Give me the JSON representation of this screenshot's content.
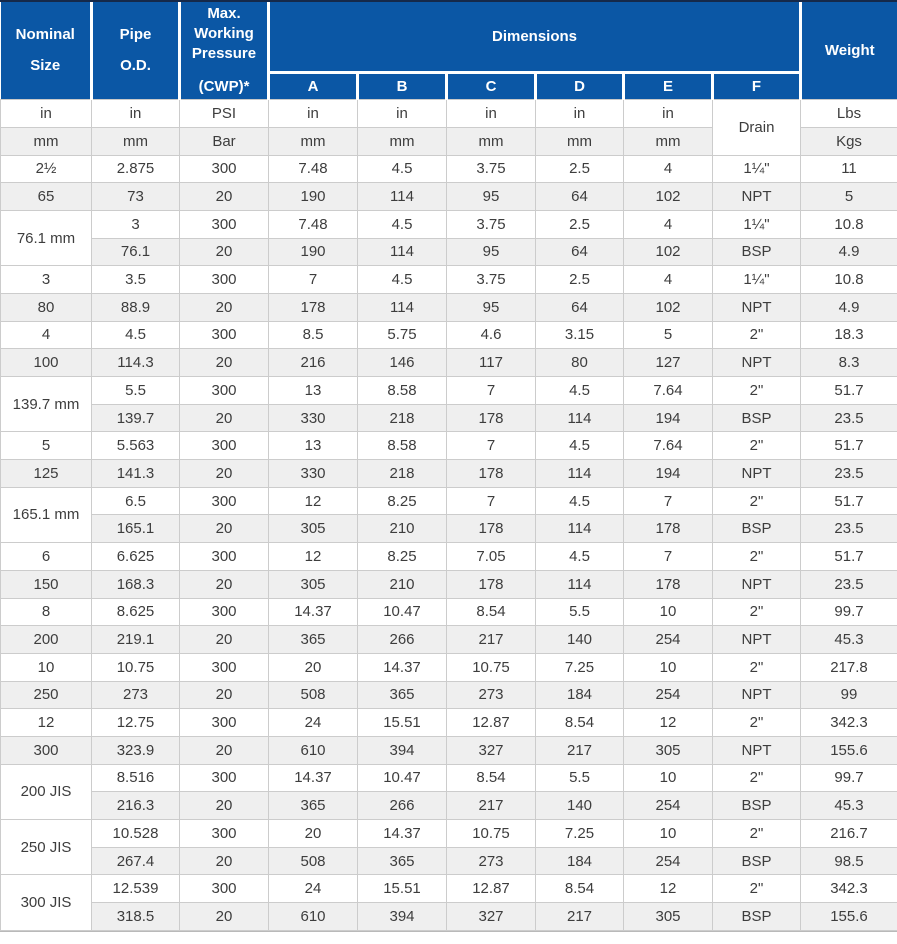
{
  "colors": {
    "header_blue": "#0b57a5",
    "stripe_gray": "#efefef",
    "border_gray": "#cccccc",
    "header_text": "#ffffff",
    "cell_text": "#3d3d3d"
  },
  "header": {
    "nominal_line1": "Nominal",
    "nominal_line2": "Size",
    "pipe_line1": "Pipe",
    "pipe_line2": "O.D.",
    "pressure_line1": "Max.",
    "pressure_line2": "Working",
    "pressure_line3": "Pressure",
    "pressure_line4": "(CWP)*",
    "dimensions": "Dimensions",
    "dim_letters": [
      "A",
      "B",
      "C",
      "D",
      "E",
      "F"
    ],
    "weight": "Weight"
  },
  "units": {
    "in_row": [
      "in",
      "in",
      "PSI",
      "in",
      "in",
      "in",
      "in",
      "in"
    ],
    "mm_row": [
      "mm",
      "mm",
      "Bar",
      "mm",
      "mm",
      "mm",
      "mm",
      "mm"
    ],
    "drain": "Drain",
    "lbs": "Lbs",
    "kgs": "Kgs"
  },
  "chart_data": {
    "type": "table",
    "columns": [
      "Nominal Size",
      "Pipe O.D.",
      "Max. Working Pressure (CWP)*",
      "A",
      "B",
      "C",
      "D",
      "E",
      "F",
      "Weight"
    ],
    "unit_rows": {
      "imperial": [
        "in",
        "in",
        "PSI",
        "in",
        "in",
        "in",
        "in",
        "in",
        "Drain",
        "Lbs"
      ],
      "metric": [
        "mm",
        "mm",
        "Bar",
        "mm",
        "mm",
        "mm",
        "mm",
        "mm",
        "Drain",
        "Kgs"
      ]
    },
    "row_pairs": [
      {
        "merged": false,
        "nominal_top": "2½",
        "nominal_bottom": "65",
        "top": [
          "2.875",
          "300",
          "7.48",
          "4.5",
          "3.75",
          "2.5",
          "4",
          "1¼\"",
          "11"
        ],
        "bottom": [
          "73",
          "20",
          "190",
          "114",
          "95",
          "64",
          "102",
          "NPT",
          "5"
        ]
      },
      {
        "merged": true,
        "nominal": "76.1 mm",
        "top": [
          "3",
          "300",
          "7.48",
          "4.5",
          "3.75",
          "2.5",
          "4",
          "1¼\"",
          "10.8"
        ],
        "bottom": [
          "76.1",
          "20",
          "190",
          "114",
          "95",
          "64",
          "102",
          "BSP",
          "4.9"
        ]
      },
      {
        "merged": false,
        "nominal_top": "3",
        "nominal_bottom": "80",
        "top": [
          "3.5",
          "300",
          "7",
          "4.5",
          "3.75",
          "2.5",
          "4",
          "1¼\"",
          "10.8"
        ],
        "bottom": [
          "88.9",
          "20",
          "178",
          "114",
          "95",
          "64",
          "102",
          "NPT",
          "4.9"
        ]
      },
      {
        "merged": false,
        "nominal_top": "4",
        "nominal_bottom": "100",
        "top": [
          "4.5",
          "300",
          "8.5",
          "5.75",
          "4.6",
          "3.15",
          "5",
          "2\"",
          "18.3"
        ],
        "bottom": [
          "114.3",
          "20",
          "216",
          "146",
          "117",
          "80",
          "127",
          "NPT",
          "8.3"
        ]
      },
      {
        "merged": true,
        "nominal": "139.7 mm",
        "top": [
          "5.5",
          "300",
          "13",
          "8.58",
          "7",
          "4.5",
          "7.64",
          "2\"",
          "51.7"
        ],
        "bottom": [
          "139.7",
          "20",
          "330",
          "218",
          "178",
          "114",
          "194",
          "BSP",
          "23.5"
        ]
      },
      {
        "merged": false,
        "nominal_top": "5",
        "nominal_bottom": "125",
        "top": [
          "5.563",
          "300",
          "13",
          "8.58",
          "7",
          "4.5",
          "7.64",
          "2\"",
          "51.7"
        ],
        "bottom": [
          "141.3",
          "20",
          "330",
          "218",
          "178",
          "114",
          "194",
          "NPT",
          "23.5"
        ]
      },
      {
        "merged": true,
        "nominal": "165.1 mm",
        "top": [
          "6.5",
          "300",
          "12",
          "8.25",
          "7",
          "4.5",
          "7",
          "2\"",
          "51.7"
        ],
        "bottom": [
          "165.1",
          "20",
          "305",
          "210",
          "178",
          "114",
          "178",
          "BSP",
          "23.5"
        ]
      },
      {
        "merged": false,
        "nominal_top": "6",
        "nominal_bottom": "150",
        "top": [
          "6.625",
          "300",
          "12",
          "8.25",
          "7.05",
          "4.5",
          "7",
          "2\"",
          "51.7"
        ],
        "bottom": [
          "168.3",
          "20",
          "305",
          "210",
          "178",
          "114",
          "178",
          "NPT",
          "23.5"
        ]
      },
      {
        "merged": false,
        "nominal_top": "8",
        "nominal_bottom": "200",
        "top": [
          "8.625",
          "300",
          "14.37",
          "10.47",
          "8.54",
          "5.5",
          "10",
          "2\"",
          "99.7"
        ],
        "bottom": [
          "219.1",
          "20",
          "365",
          "266",
          "217",
          "140",
          "254",
          "NPT",
          "45.3"
        ]
      },
      {
        "merged": false,
        "nominal_top": "10",
        "nominal_bottom": "250",
        "top": [
          "10.75",
          "300",
          "20",
          "14.37",
          "10.75",
          "7.25",
          "10",
          "2\"",
          "217.8"
        ],
        "bottom": [
          "273",
          "20",
          "508",
          "365",
          "273",
          "184",
          "254",
          "NPT",
          "99"
        ]
      },
      {
        "merged": false,
        "nominal_top": "12",
        "nominal_bottom": "300",
        "top": [
          "12.75",
          "300",
          "24",
          "15.51",
          "12.87",
          "8.54",
          "12",
          "2\"",
          "342.3"
        ],
        "bottom": [
          "323.9",
          "20",
          "610",
          "394",
          "327",
          "217",
          "305",
          "NPT",
          "155.6"
        ]
      },
      {
        "merged": true,
        "nominal": "200 JIS",
        "top": [
          "8.516",
          "300",
          "14.37",
          "10.47",
          "8.54",
          "5.5",
          "10",
          "2\"",
          "99.7"
        ],
        "bottom": [
          "216.3",
          "20",
          "365",
          "266",
          "217",
          "140",
          "254",
          "BSP",
          "45.3"
        ]
      },
      {
        "merged": true,
        "nominal": "250 JIS",
        "top": [
          "10.528",
          "300",
          "20",
          "14.37",
          "10.75",
          "7.25",
          "10",
          "2\"",
          "216.7"
        ],
        "bottom": [
          "267.4",
          "20",
          "508",
          "365",
          "273",
          "184",
          "254",
          "BSP",
          "98.5"
        ]
      },
      {
        "merged": true,
        "nominal": "300 JIS",
        "top": [
          "12.539",
          "300",
          "24",
          "15.51",
          "12.87",
          "8.54",
          "12",
          "2\"",
          "342.3"
        ],
        "bottom": [
          "318.5",
          "20",
          "610",
          "394",
          "327",
          "217",
          "305",
          "BSP",
          "155.6"
        ]
      }
    ]
  }
}
